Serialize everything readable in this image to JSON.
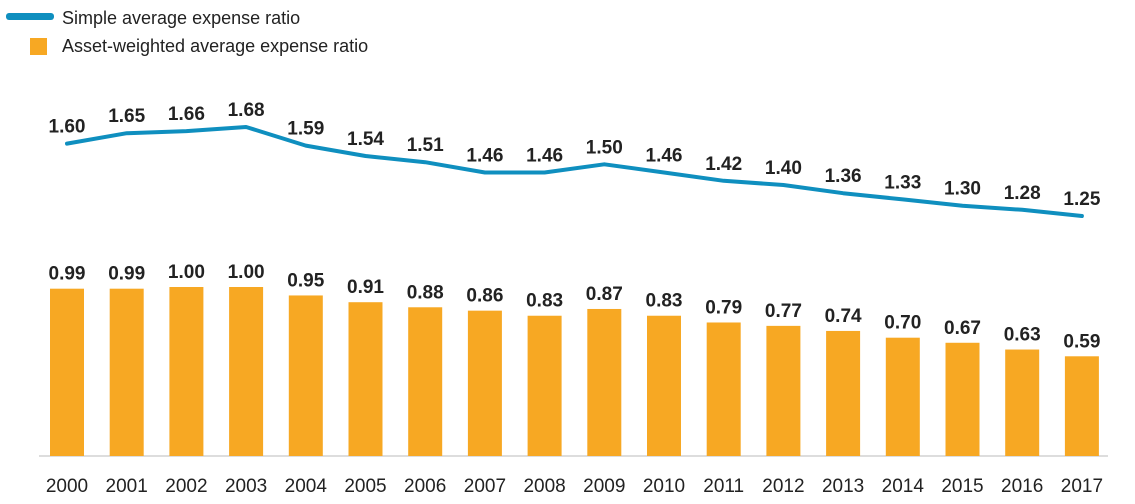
{
  "chart_data": {
    "type": "bar+line",
    "title": "",
    "xlabel": "",
    "ylabel": "",
    "categories": [
      "2000",
      "2001",
      "2002",
      "2003",
      "2004",
      "2005",
      "2006",
      "2007",
      "2008",
      "2009",
      "2010",
      "2011",
      "2012",
      "2013",
      "2014",
      "2015",
      "2016",
      "2017"
    ],
    "series": [
      {
        "name": "Simple average expense ratio",
        "type": "line",
        "color": "#0f8fbf",
        "values": [
          1.6,
          1.65,
          1.66,
          1.68,
          1.59,
          1.54,
          1.51,
          1.46,
          1.46,
          1.5,
          1.46,
          1.42,
          1.4,
          1.36,
          1.33,
          1.3,
          1.28,
          1.25
        ],
        "labels": [
          "1.60",
          "1.65",
          "1.66",
          "1.68",
          "1.59",
          "1.54",
          "1.51",
          "1.46",
          "1.46",
          "1.50",
          "1.46",
          "1.42",
          "1.40",
          "1.36",
          "1.33",
          "1.30",
          "1.28",
          "1.25"
        ]
      },
      {
        "name": "Asset-weighted average expense ratio",
        "type": "bar",
        "color": "#f7a823",
        "values": [
          0.99,
          0.99,
          1.0,
          1.0,
          0.95,
          0.91,
          0.88,
          0.86,
          0.83,
          0.87,
          0.83,
          0.79,
          0.77,
          0.74,
          0.7,
          0.67,
          0.63,
          0.59
        ],
        "labels": [
          "0.99",
          "0.99",
          "1.00",
          "1.00",
          "0.95",
          "0.91",
          "0.88",
          "0.86",
          "0.83",
          "0.87",
          "0.83",
          "0.79",
          "0.77",
          "0.74",
          "0.70",
          "0.67",
          "0.63",
          "0.59"
        ]
      }
    ],
    "legend_position": "top-left",
    "grid": false
  }
}
